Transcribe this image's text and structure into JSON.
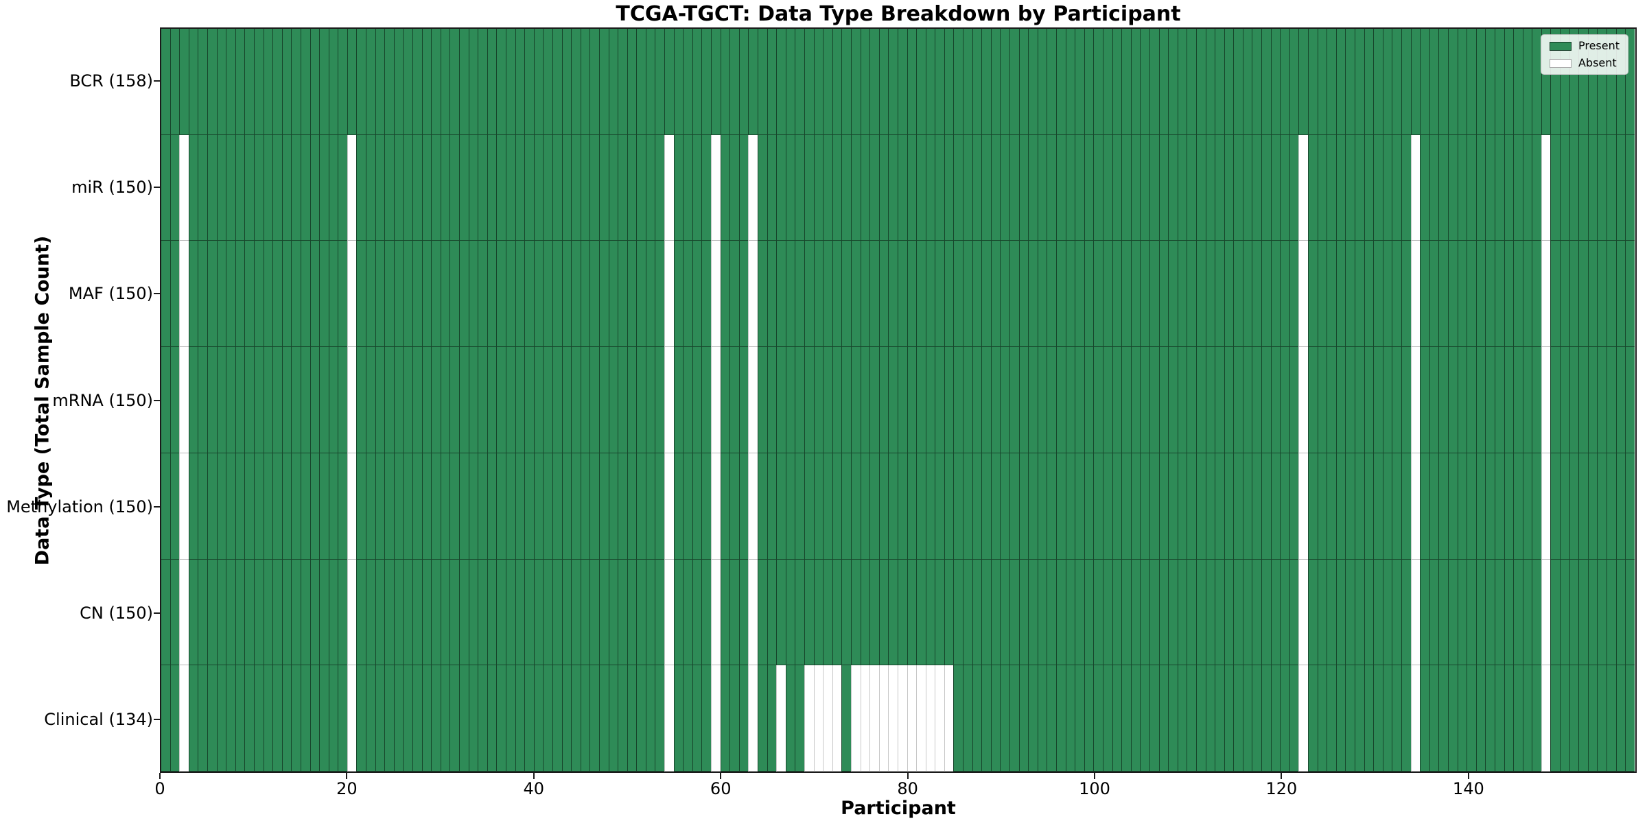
{
  "chart_data": {
    "type": "heatmap",
    "title": "TCGA-TGCT: Data Type Breakdown by Participant",
    "xlabel": "Participant",
    "ylabel": "Data Type (Total Sample Count)",
    "n_participants": 158,
    "x_ticks": [
      0,
      20,
      40,
      60,
      80,
      100,
      120,
      140
    ],
    "x_range": [
      0,
      158
    ],
    "colors": {
      "present": "#2e8b57",
      "absent": "#ffffff"
    },
    "legend": [
      {
        "label": "Present",
        "color": "#2e8b57"
      },
      {
        "label": "Absent",
        "color": "#ffffff"
      }
    ],
    "legend_position": "upper right",
    "rows": [
      {
        "label": "BCR (158)",
        "count": 158,
        "absent": []
      },
      {
        "label": "miR (150)",
        "count": 150,
        "absent": [
          2,
          20,
          54,
          59,
          63,
          122,
          134,
          148
        ]
      },
      {
        "label": "MAF (150)",
        "count": 150,
        "absent": [
          2,
          20,
          54,
          59,
          63,
          122,
          134,
          148
        ]
      },
      {
        "label": "mRNA (150)",
        "count": 150,
        "absent": [
          2,
          20,
          54,
          59,
          63,
          122,
          134,
          148
        ]
      },
      {
        "label": "Methylation (150)",
        "count": 150,
        "absent": [
          2,
          20,
          54,
          59,
          63,
          122,
          134,
          148
        ]
      },
      {
        "label": "CN (150)",
        "count": 150,
        "absent": [
          2,
          20,
          54,
          59,
          63,
          122,
          134,
          148
        ]
      },
      {
        "label": "Clinical (134)",
        "count": 134,
        "absent": [
          2,
          20,
          54,
          59,
          63,
          66,
          69,
          70,
          71,
          72,
          74,
          75,
          76,
          77,
          78,
          79,
          80,
          81,
          82,
          83,
          84,
          122,
          134,
          148
        ]
      }
    ]
  }
}
